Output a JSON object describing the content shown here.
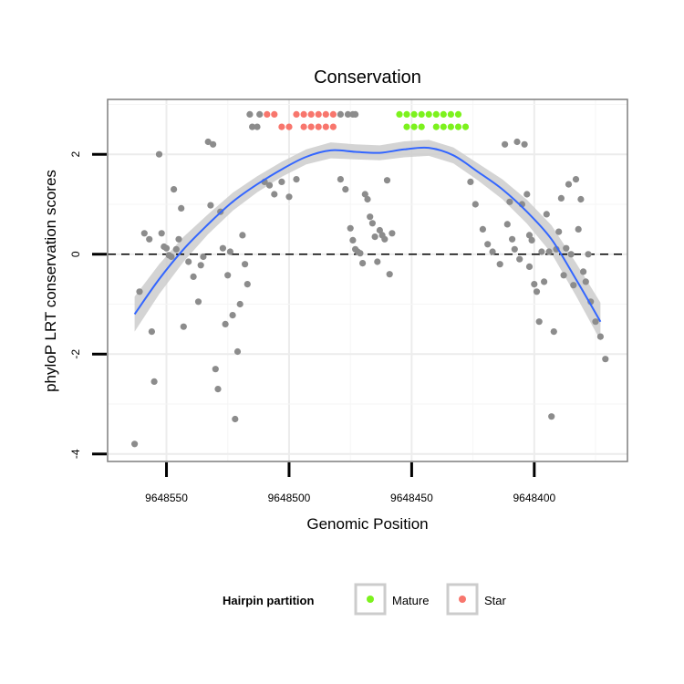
{
  "chart_data": {
    "type": "scatter",
    "title": "Conservation",
    "xlabel": "Genomic Position",
    "ylabel": "phyloP LRT conservation scores",
    "x_reversed": true,
    "xlim": [
      9648574,
      9648362
    ],
    "ylim": [
      -4.15,
      3.1
    ],
    "x_ticks": [
      9648550,
      9648500,
      9648450,
      9648400
    ],
    "x_tick_labels": [
      "9648550",
      "9648500",
      "9648450",
      "9648400"
    ],
    "y_ticks": [
      2,
      0,
      -2,
      -4
    ],
    "y_tick_labels": [
      "2",
      "0",
      "-2",
      "-4"
    ],
    "grid": true,
    "reference_line": {
      "y": 0,
      "style": "dashed",
      "color": "#000000"
    },
    "legend": {
      "title": "Hairpin partition",
      "position": "bottom",
      "entries": [
        {
          "label": "Mature",
          "color": "#7cf21d"
        },
        {
          "label": "Star",
          "color": "#f8766d"
        }
      ]
    },
    "colors": {
      "points": "#8c8c8c",
      "smooth_line": "#3366ff",
      "ribbon": "#cccccc",
      "Mature": "#7cf21d",
      "Star": "#f8766d",
      "panel_border": "#7f7f7f",
      "grid": "#f0f0f0"
    },
    "smooth": {
      "method": "loess",
      "x": [
        9648563,
        9648553,
        9648543,
        9648533,
        9648523,
        9648513,
        9648503,
        9648493,
        9648483,
        9648473,
        9648463,
        9648453,
        9648443,
        9648433,
        9648423,
        9648413,
        9648403,
        9648393,
        9648383,
        9648373
      ],
      "y": [
        -1.2,
        -0.5,
        0.1,
        0.6,
        1.05,
        1.4,
        1.7,
        1.95,
        2.08,
        2.05,
        2.03,
        2.1,
        2.13,
        1.98,
        1.65,
        1.3,
        0.85,
        0.3,
        -0.5,
        -1.35
      ],
      "ci_half_width": [
        0.35,
        0.3,
        0.25,
        0.2,
        0.18,
        0.16,
        0.15,
        0.15,
        0.16,
        0.15,
        0.15,
        0.16,
        0.16,
        0.16,
        0.17,
        0.2,
        0.24,
        0.28,
        0.33,
        0.38
      ]
    },
    "series": [
      {
        "name": "Mature",
        "x": [
          9648455,
          9648452,
          9648449,
          9648446,
          9648443,
          9648440,
          9648437,
          9648434,
          9648431,
          9648452,
          9648449,
          9648446,
          9648440,
          9648437,
          9648434,
          9648431,
          9648428
        ],
        "y": [
          2.8,
          2.8,
          2.8,
          2.8,
          2.8,
          2.8,
          2.8,
          2.8,
          2.8,
          2.55,
          2.55,
          2.55,
          2.55,
          2.55,
          2.55,
          2.55,
          2.55
        ]
      },
      {
        "name": "Star",
        "x": [
          9648509,
          9648506,
          9648497,
          9648494,
          9648491,
          9648488,
          9648485,
          9648482,
          9648503,
          9648500,
          9648494,
          9648491,
          9648488,
          9648485,
          9648482
        ],
        "y": [
          2.8,
          2.8,
          2.8,
          2.8,
          2.8,
          2.8,
          2.8,
          2.8,
          2.55,
          2.55,
          2.55,
          2.55,
          2.55,
          2.55,
          2.55
        ]
      },
      {
        "name": "",
        "x": [
          9648563,
          9648561,
          9648559,
          9648557,
          9648556,
          9648555,
          9648553,
          9648552,
          9648551,
          9648550,
          9648549,
          9648548,
          9648547,
          9648546,
          9648545,
          9648544,
          9648543,
          9648541,
          9648539,
          9648537,
          9648536,
          9648535,
          9648533,
          9648532,
          9648531,
          9648530,
          9648529,
          9648528,
          9648527,
          9648526,
          9648525,
          9648524,
          9648523,
          9648522,
          9648521,
          9648520,
          9648519,
          9648518,
          9648517,
          9648515,
          9648512,
          9648510,
          9648508,
          9648506,
          9648503,
          9648500,
          9648497,
          9648479,
          9648477,
          9648475,
          9648474,
          9648473,
          9648472,
          9648471,
          9648470,
          9648469,
          9648468,
          9648467,
          9648466,
          9648465,
          9648464,
          9648463,
          9648462,
          9648461,
          9648460,
          9648459,
          9648458,
          9648426,
          9648424,
          9648421,
          9648419,
          9648417,
          9648414,
          9648412,
          9648411,
          9648410,
          9648408,
          9648407,
          9648406,
          9648405,
          9648404,
          9648403,
          9648402,
          9648401,
          9648400,
          9648399,
          9648398,
          9648397,
          9648396,
          9648395,
          9648394,
          9648393,
          9648392,
          9648391,
          9648390,
          9648389,
          9648388,
          9648387,
          9648386,
          9648385,
          9648384,
          9648383,
          9648382,
          9648381,
          9648380,
          9648379,
          9648378,
          9648377,
          9648375,
          9648373,
          9648371,
          9648516,
          9648513,
          9648479,
          9648476,
          9648474,
          9648473,
          9648409,
          9648402
        ],
        "y": [
          -3.8,
          -0.75,
          0.42,
          0.3,
          -1.55,
          -2.55,
          2.0,
          0.42,
          0.15,
          0.12,
          -0.02,
          -0.05,
          1.3,
          0.1,
          0.3,
          0.92,
          -1.45,
          -0.15,
          -0.45,
          -0.95,
          -0.22,
          -0.05,
          2.25,
          0.98,
          2.2,
          -2.3,
          -2.7,
          0.85,
          0.12,
          -1.4,
          -0.42,
          0.05,
          -1.22,
          -3.3,
          -1.95,
          -1.0,
          0.38,
          -0.2,
          -0.6,
          2.55,
          2.8,
          1.45,
          1.38,
          1.2,
          1.45,
          1.15,
          1.5,
          1.5,
          1.3,
          0.52,
          0.28,
          0.1,
          0.05,
          0.02,
          -0.18,
          1.2,
          1.1,
          0.75,
          0.62,
          0.35,
          -0.15,
          0.48,
          0.38,
          0.3,
          1.48,
          -0.4,
          0.42,
          1.45,
          1.0,
          0.5,
          0.2,
          0.05,
          -0.2,
          2.2,
          0.6,
          1.05,
          0.1,
          2.25,
          -0.1,
          1.0,
          2.2,
          1.2,
          -0.25,
          0.28,
          -0.6,
          -0.75,
          -1.35,
          0.05,
          -0.55,
          0.8,
          0.05,
          -3.25,
          -1.55,
          0.1,
          0.45,
          1.12,
          -0.42,
          0.12,
          1.4,
          0.0,
          -0.62,
          1.5,
          0.5,
          1.1,
          -0.35,
          -0.55,
          0.0,
          -0.95,
          -1.35,
          -1.65,
          -2.1,
          2.8,
          2.55,
          2.8,
          2.8,
          2.8,
          2.8,
          0.3,
          0.38
        ]
      }
    ]
  }
}
